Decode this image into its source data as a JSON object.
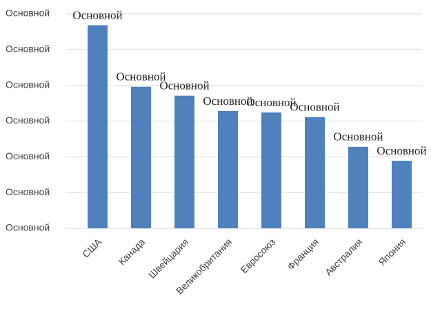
{
  "chart_data": {
    "type": "bar",
    "categories": [
      "США",
      "Канада",
      "Швейцария",
      "Великобритания",
      "Евросоюз",
      "Франция",
      "Австралия",
      "Япония"
    ],
    "values": [
      5.68,
      3.96,
      3.71,
      3.28,
      3.24,
      3.11,
      2.28,
      1.89
    ],
    "value_labels": [
      "Основной",
      "Основной",
      "Основной",
      "Основной",
      "Основной",
      "Основной",
      "Основной",
      "Основной"
    ],
    "color": "#4f81bd",
    "ylim": [
      0,
      6
    ],
    "yticks": [
      {
        "value": 0,
        "label": "Основной"
      },
      {
        "value": 1,
        "label": "Основной"
      },
      {
        "value": 2,
        "label": "Основной"
      },
      {
        "value": 3,
        "label": "Основной"
      },
      {
        "value": 4,
        "label": "Основной"
      },
      {
        "value": 5,
        "label": "Основной"
      },
      {
        "value": 6,
        "label": "Основной"
      }
    ],
    "grid": true
  }
}
